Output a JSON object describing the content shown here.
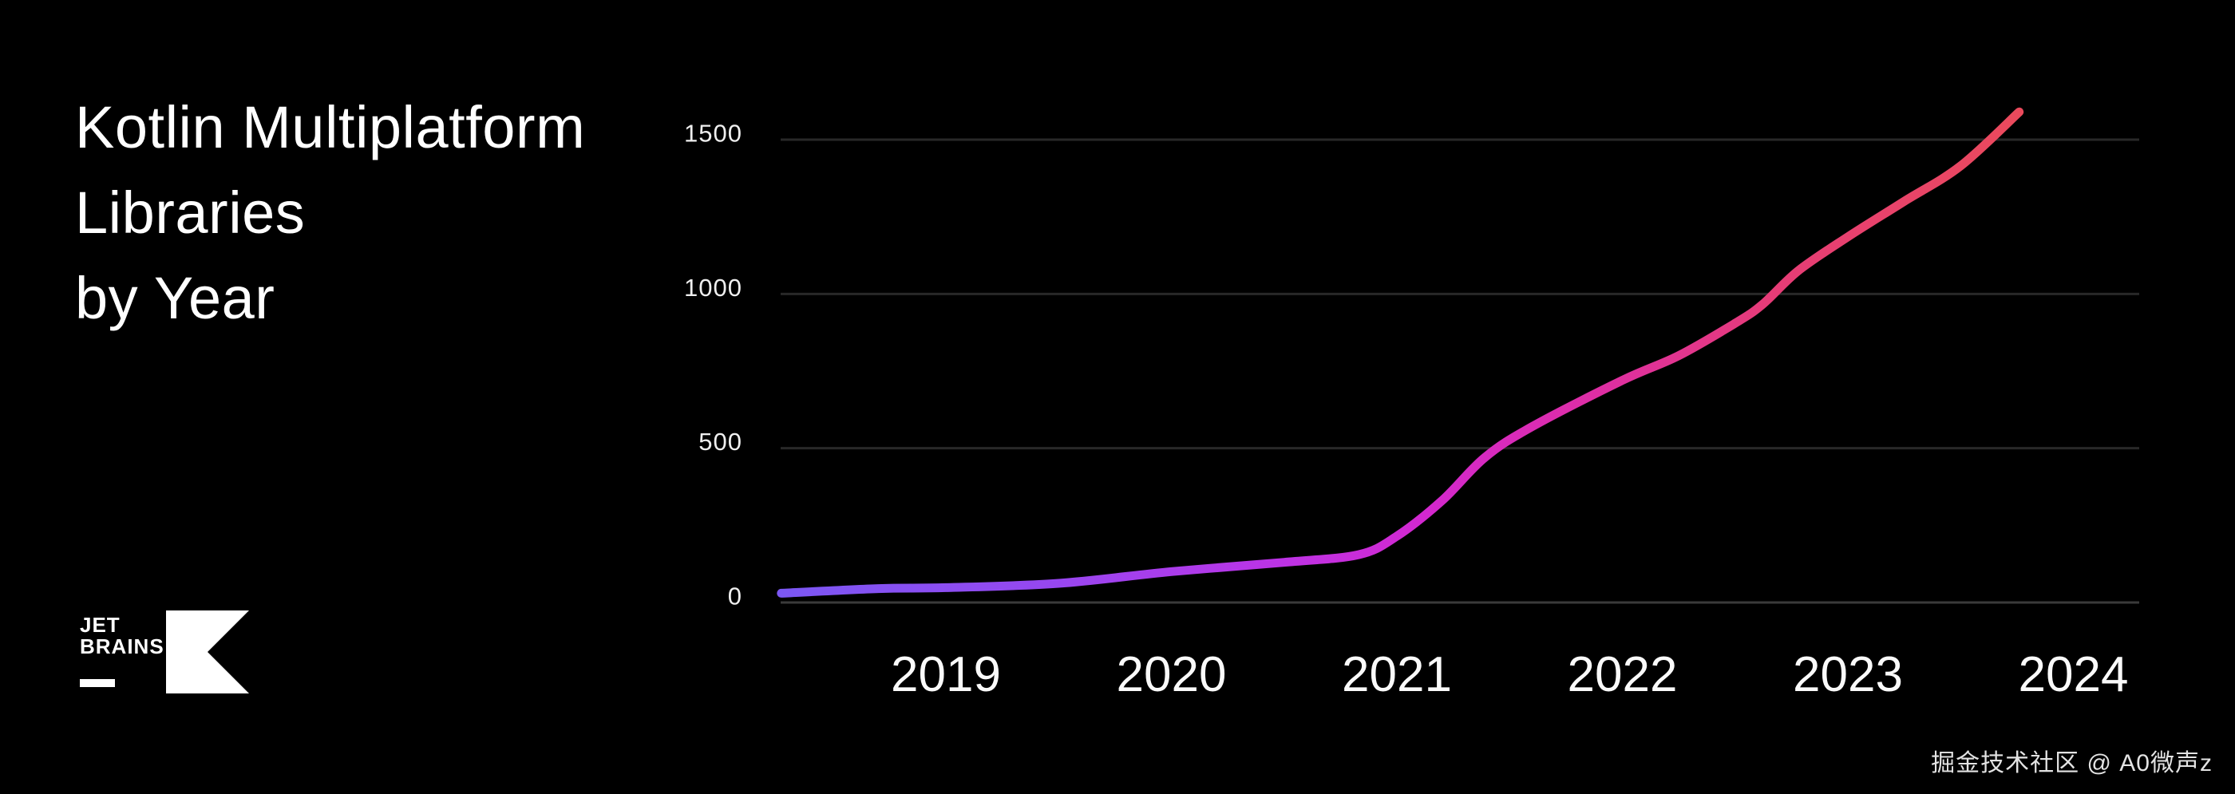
{
  "title": "Kotlin Multiplatform\nLibraries\nby Year",
  "brand": {
    "wordmark": "JET\nBRAINS",
    "logo_icon": "kotlin-mark"
  },
  "watermark": {
    "text": "掘金技术社区 @ A0微声z"
  },
  "colors": {
    "background": "#000000",
    "title_text": "#ffffff",
    "axis_text": "#efefef",
    "grid_line": "#282828",
    "baseline": "#3a3a3a",
    "logo_white": "#ffffff",
    "line_gradient": [
      {
        "offset": "0%",
        "color": "#7B57F3"
      },
      {
        "offset": "22%",
        "color": "#9747F0"
      },
      {
        "offset": "40%",
        "color": "#BC33E6"
      },
      {
        "offset": "52%",
        "color": "#D328CF"
      },
      {
        "offset": "66%",
        "color": "#DE2EA4"
      },
      {
        "offset": "80%",
        "color": "#E63C77"
      },
      {
        "offset": "100%",
        "color": "#EA4A5C"
      }
    ]
  },
  "chart_data": {
    "type": "line",
    "title": "Kotlin Multiplatform Libraries by Year",
    "xlabel": "",
    "ylabel": "",
    "legend": "none",
    "grid": "horizontal-only",
    "x_ticks": [
      2019,
      2020,
      2021,
      2022,
      2023,
      2024
    ],
    "y_ticks": [
      0,
      500,
      1000,
      1500
    ],
    "x_range": [
      2018.27,
      2024.3
    ],
    "ylim": [
      0,
      1500
    ],
    "series": [
      {
        "name": "Kotlin Multiplatform libraries",
        "points": [
          [
            2018.27,
            30
          ],
          [
            2018.7,
            45
          ],
          [
            2019.0,
            48
          ],
          [
            2019.5,
            62
          ],
          [
            2020.0,
            100
          ],
          [
            2020.5,
            130
          ],
          [
            2020.83,
            155
          ],
          [
            2021.0,
            215
          ],
          [
            2021.2,
            330
          ],
          [
            2021.39,
            470
          ],
          [
            2021.6,
            570
          ],
          [
            2022.0,
            720
          ],
          [
            2022.25,
            800
          ],
          [
            2022.5,
            905
          ],
          [
            2022.62,
            965
          ],
          [
            2022.78,
            1075
          ],
          [
            2023.0,
            1185
          ],
          [
            2023.25,
            1300
          ],
          [
            2023.5,
            1415
          ],
          [
            2023.76,
            1590
          ]
        ]
      }
    ]
  }
}
